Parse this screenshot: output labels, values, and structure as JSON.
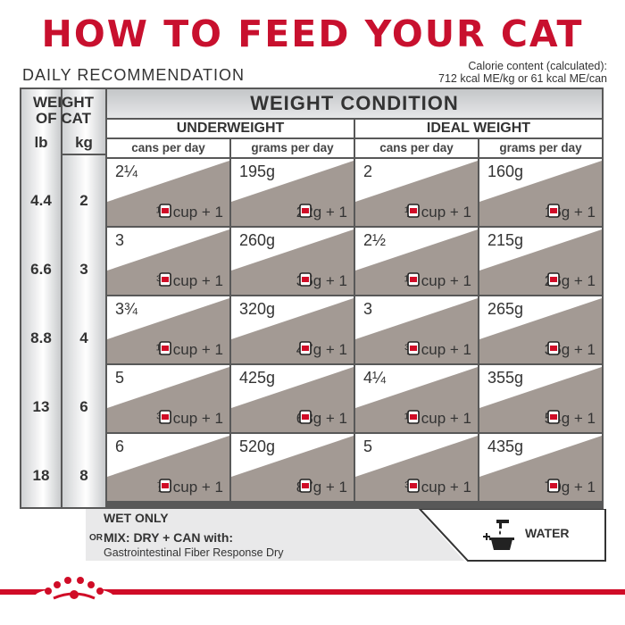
{
  "title": "HOW TO FEED YOUR CAT",
  "subtitle": "DAILY RECOMMENDATION",
  "calorie": {
    "line1": "Calorie content (calculated):",
    "line2": "712 kcal ME/kg or 61 kcal ME/can"
  },
  "table": {
    "weight_header_line1": "WEIGHT",
    "weight_header_line2": "OF CAT",
    "lb_label": "lb",
    "kg_label": "kg",
    "condition_header": "WEIGHT CONDITION",
    "groups": [
      "UNDERWEIGHT",
      "IDEAL WEIGHT"
    ],
    "subheaders": [
      "cans per day",
      "grams per day",
      "cans per day",
      "grams per day"
    ],
    "rows": [
      {
        "lb": "4.4",
        "kg": "2",
        "cells": [
          {
            "top": "2¼",
            "bottom": "¼ cup + 1"
          },
          {
            "top": "195g",
            "bottom": "22g + 1"
          },
          {
            "top": "2",
            "bottom": "⅛ cup + 1"
          },
          {
            "top": "160g",
            "bottom": "16g + 1"
          }
        ]
      },
      {
        "lb": "6.6",
        "kg": "3",
        "cells": [
          {
            "top": "3",
            "bottom": "⅜ cup + 1"
          },
          {
            "top": "260g",
            "bottom": "35g + 1"
          },
          {
            "top": "2½",
            "bottom": "¼ cup + 1"
          },
          {
            "top": "215g",
            "bottom": "26g + 1"
          }
        ]
      },
      {
        "lb": "8.8",
        "kg": "4",
        "cells": [
          {
            "top": "3¾",
            "bottom": "½ cup + 1"
          },
          {
            "top": "320g",
            "bottom": "47g + 1"
          },
          {
            "top": "3",
            "bottom": "⅜ cup + 1"
          },
          {
            "top": "265g",
            "bottom": "36g + 1"
          }
        ]
      },
      {
        "lb": "13",
        "kg": "6",
        "cells": [
          {
            "top": "5",
            "bottom": "¾ cup + 1"
          },
          {
            "top": "425g",
            "bottom": "68g + 1"
          },
          {
            "top": "4¼",
            "bottom": "½ cup + 1"
          },
          {
            "top": "355g",
            "bottom": "54g + 1"
          }
        ]
      },
      {
        "lb": "18",
        "kg": "8",
        "cells": [
          {
            "top": "6",
            "bottom": "⅞ cup + 1"
          },
          {
            "top": "520g",
            "bottom": "87g + 1"
          },
          {
            "top": "5",
            "bottom": "¾ cup + 1"
          },
          {
            "top": "435g",
            "bottom": "70g + 1"
          }
        ]
      }
    ]
  },
  "footer": {
    "wet_only": "WET ONLY",
    "or": "OR",
    "mix": "MIX: DRY + CAN with:",
    "product": "Gastrointestinal Fiber Response Dry",
    "water": "WATER"
  },
  "icons": {
    "can": "can-icon",
    "water": "water-bowl-icon",
    "logo": "royal-canin-crown-logo"
  },
  "colors": {
    "brand_red": "#c8102e",
    "table_gray": "#585858",
    "cell_shade": "#a39a94"
  }
}
